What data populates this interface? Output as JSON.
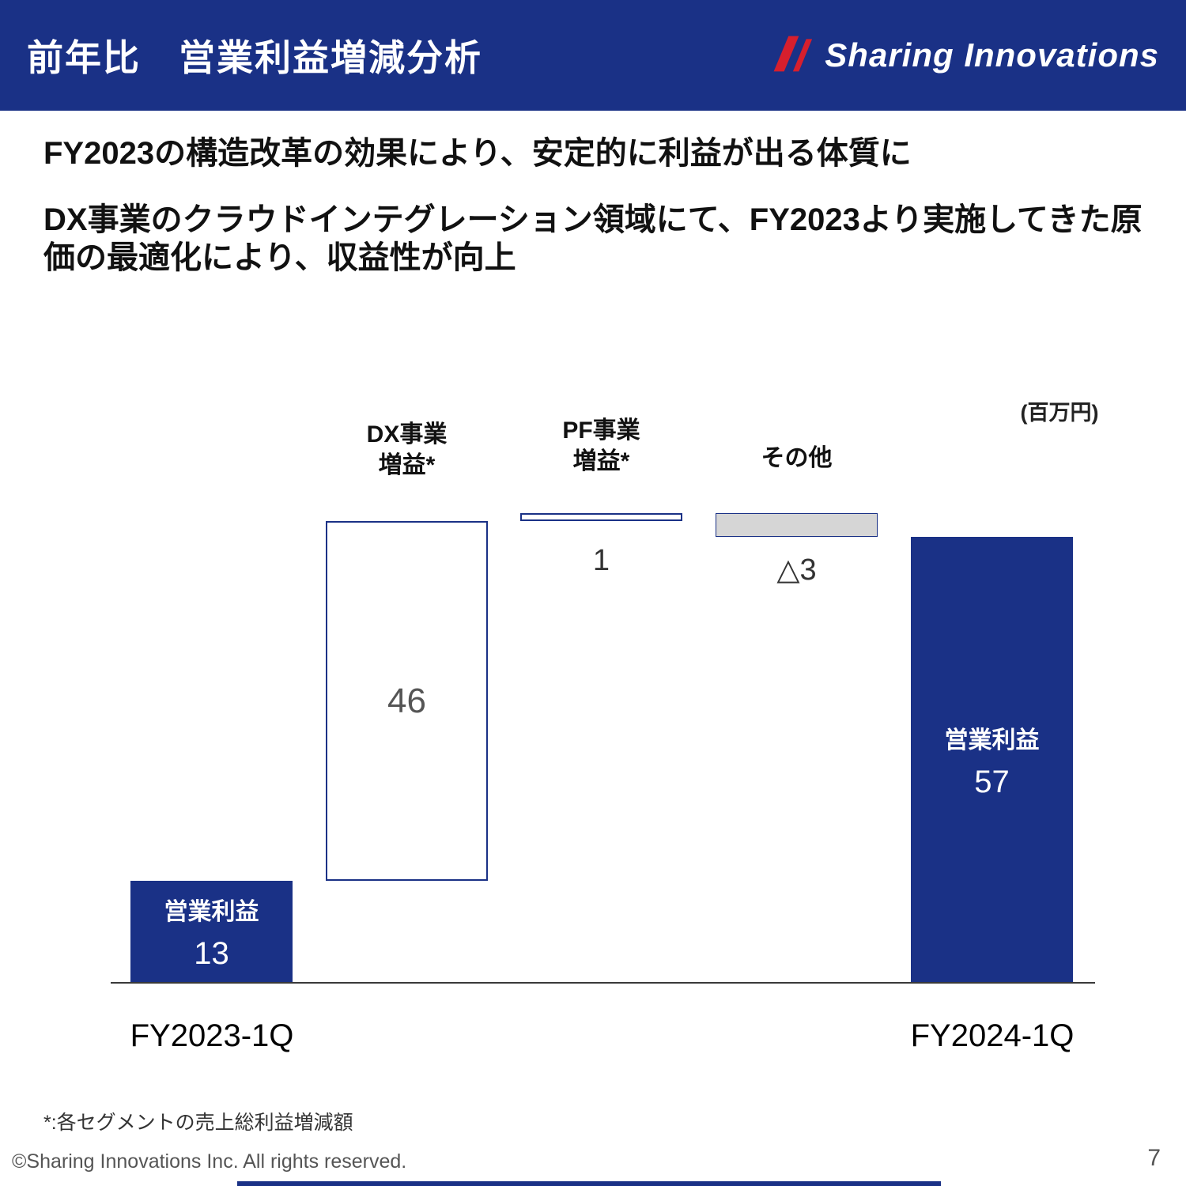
{
  "header": {
    "title": "前年比　営業利益増減分析",
    "logo_text": "Sharing Innovations",
    "navy": "#1a3186",
    "red": "#d71f2d"
  },
  "lead": {
    "line1": "FY2023の構造改革の効果により、安定的に利益が出る体質に",
    "line2": "DX事業のクラウドインテグレーション領域にて、FY2023より実施してきた原価の最適化により、収益性が向上"
  },
  "chart_data": {
    "type": "waterfall",
    "title": "前年比 営業利益増減分析",
    "unit_label": "(百万円)",
    "x_labels": [
      "FY2023-1Q",
      "FY2024-1Q"
    ],
    "ylim": [
      0,
      62
    ],
    "bars": [
      {
        "name": "fy2023-operating-profit",
        "kind": "total",
        "value": 13,
        "display_value": "13",
        "inner_label": "営業利益",
        "axis_label": "FY2023-1Q",
        "color": "navy"
      },
      {
        "name": "dx-segment-gain",
        "kind": "delta",
        "value": 46,
        "display_value": "46",
        "label_line1": "DX事業",
        "label_line2": "増益*",
        "color": "white"
      },
      {
        "name": "pf-segment-gain",
        "kind": "delta",
        "value": 1,
        "display_value": "1",
        "label_line1": "PF事業",
        "label_line2": "増益*",
        "color": "white"
      },
      {
        "name": "other-change",
        "kind": "delta",
        "value": -3,
        "display_value": "△3",
        "label_line1": "その他",
        "label_line2": "",
        "color": "gray"
      },
      {
        "name": "fy2024-operating-profit",
        "kind": "total",
        "value": 57,
        "display_value": "57",
        "inner_label": "営業利益",
        "axis_label": "FY2024-1Q",
        "color": "navy"
      }
    ]
  },
  "footer": {
    "footnote": "*:各セグメントの売上総利益増減額",
    "copyright": "©Sharing Innovations Inc. All rights reserved.",
    "page_number": "7"
  }
}
